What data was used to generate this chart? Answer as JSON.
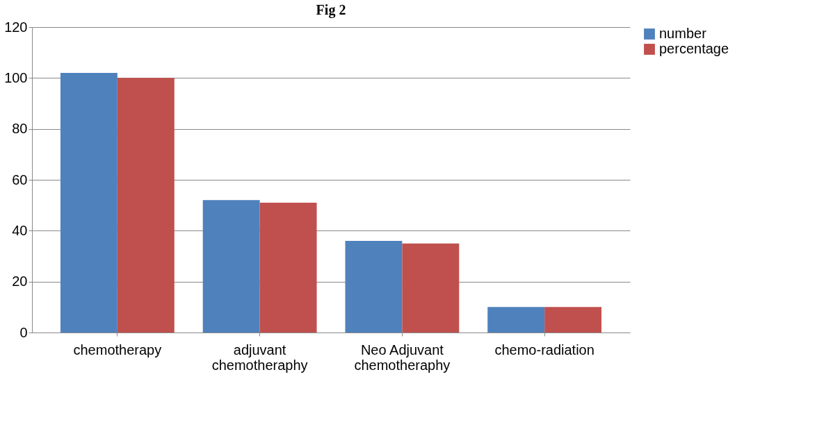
{
  "chart_data": {
    "type": "bar",
    "title": "Fig 2",
    "categories": [
      "chemotherapy",
      "adjuvant chemotheraphy",
      "Neo Adjuvant chemotheraphy",
      "chemo-radiation"
    ],
    "series": [
      {
        "name": "number",
        "color": "#4f81bd",
        "values": [
          102,
          52,
          36,
          10
        ]
      },
      {
        "name": "percentage",
        "color": "#c0504d",
        "values": [
          100,
          51,
          35,
          10
        ]
      }
    ],
    "ylim": [
      0,
      120
    ],
    "yticks": [
      0,
      20,
      40,
      60,
      80,
      100,
      120
    ],
    "grid": "y",
    "legend": "right"
  }
}
